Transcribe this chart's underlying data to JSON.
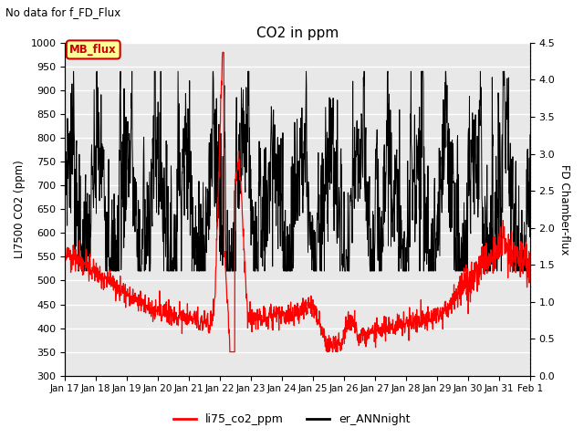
{
  "title": "CO2 in ppm",
  "subtitle": "No data for f_FD_Flux",
  "ylabel_left": "LI7500 CO2 (ppm)",
  "ylabel_right": "FD Chamber-flux",
  "ylim_left": [
    300,
    1000
  ],
  "ylim_right": [
    0.0,
    4.5
  ],
  "yticks_left": [
    300,
    350,
    400,
    450,
    500,
    550,
    600,
    650,
    700,
    750,
    800,
    850,
    900,
    950,
    1000
  ],
  "yticks_right": [
    0.0,
    0.5,
    1.0,
    1.5,
    2.0,
    2.5,
    3.0,
    3.5,
    4.0,
    4.5
  ],
  "xtick_labels": [
    "Jan 17",
    "Jan 18",
    "Jan 19",
    "Jan 20",
    "Jan 21",
    "Jan 22",
    "Jan 23",
    "Jan 24",
    "Jan 25",
    "Jan 26",
    "Jan 27",
    "Jan 28",
    "Jan 29",
    "Jan 30",
    "Jan 31",
    "Feb 1"
  ],
  "line1_color": "#ff0000",
  "line2_color": "#000000",
  "legend_label1": "li75_co2_ppm",
  "legend_label2": "er_ANNnight",
  "mb_flux_label": "MB_flux",
  "mb_flux_bg": "#ffff99",
  "mb_flux_border": "#cc0000",
  "background_color": "#e8e8e8",
  "grid_color": "#ffffff"
}
